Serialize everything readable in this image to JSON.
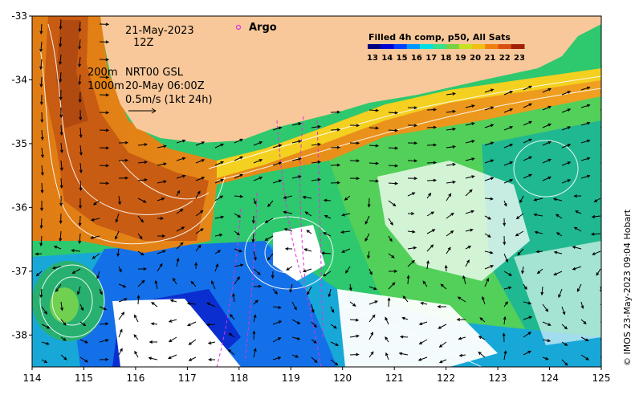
{
  "annotations": {
    "date": "21-May-2023",
    "hour": "12Z",
    "depth_shallow": "200m",
    "depth_deep": "1000m",
    "source": "NRT00 GSL",
    "source_time": "20-May 06:00Z",
    "scale_text": "0.5m/s (1kt 24h)",
    "argo_label": "Argo"
  },
  "legend": {
    "title": "Filled 4h comp, p50, All Sats",
    "ticks": [
      "13",
      "14",
      "15",
      "16",
      "17",
      "18",
      "19",
      "20",
      "21",
      "22",
      "23"
    ],
    "colors": [
      "#00007f",
      "#0000d4",
      "#0040ff",
      "#0098ff",
      "#00e0e0",
      "#35e08a",
      "#7ad040",
      "#c8e020",
      "#f0c010",
      "#f08010",
      "#d85010",
      "#a02008"
    ]
  },
  "axes": {
    "x_ticks": [
      "114",
      "115",
      "116",
      "117",
      "118",
      "119",
      "120",
      "121",
      "122",
      "123",
      "124",
      "125"
    ],
    "y_ticks": [
      "-33",
      "-34",
      "-35",
      "-36",
      "-37",
      "-38"
    ],
    "x_range": [
      114,
      125
    ],
    "y_range": [
      -38.5,
      -33
    ]
  },
  "credit": "© IMOS 23-May-2023 09:04 Hobart",
  "colors": {
    "land": "#f8c89a",
    "argo": "#e030e0",
    "contour": "#ffffff",
    "arrow": "#000000"
  }
}
